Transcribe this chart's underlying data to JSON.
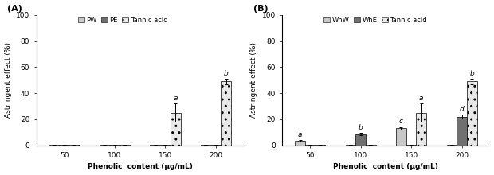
{
  "panel_A": {
    "title": "(A)",
    "categories": [
      50,
      100,
      150,
      200
    ],
    "series": [
      {
        "label": "PW",
        "color": "#c8c8c8",
        "hatch": "",
        "values": [
          0.3,
          0.3,
          0.3,
          0.3
        ],
        "errors": [
          0.1,
          0.1,
          0.1,
          0.1
        ],
        "letters": [
          "",
          "",
          "",
          ""
        ]
      },
      {
        "label": "PE",
        "color": "#707070",
        "hatch": "",
        "values": [
          0.3,
          0.3,
          0.3,
          0.3
        ],
        "errors": [
          0.1,
          0.1,
          0.1,
          0.1
        ],
        "letters": [
          "",
          "",
          "",
          ""
        ]
      },
      {
        "label": "Tannic acid",
        "color": "#e8e8e8",
        "hatch": "..",
        "values": [
          0.3,
          0.3,
          25.0,
          49.0
        ],
        "errors": [
          0.1,
          0.1,
          7.0,
          2.0
        ],
        "letters": [
          "",
          "",
          "a",
          "b"
        ]
      }
    ],
    "ylabel": "Astringent effect (%)",
    "xlabel": "Phenolic  content (μg/mL)",
    "ylim": [
      0,
      100
    ],
    "yticks": [
      0,
      20,
      40,
      60,
      80,
      100
    ]
  },
  "panel_B": {
    "title": "(B)",
    "categories": [
      50,
      100,
      150,
      200
    ],
    "series": [
      {
        "label": "WhW",
        "color": "#c8c8c8",
        "hatch": "",
        "values": [
          3.5,
          0.3,
          13.0,
          0.3
        ],
        "errors": [
          0.5,
          0.1,
          1.0,
          0.1
        ],
        "letters": [
          "a",
          "",
          "c",
          ""
        ]
      },
      {
        "label": "WhE",
        "color": "#707070",
        "hatch": "",
        "values": [
          0.3,
          8.5,
          0.3,
          22.0
        ],
        "errors": [
          0.1,
          1.0,
          0.1,
          1.5
        ],
        "letters": [
          "",
          "b",
          "",
          "d"
        ]
      },
      {
        "label": "Tannic acid",
        "color": "#e8e8e8",
        "hatch": "..",
        "values": [
          0.3,
          0.3,
          25.0,
          49.0
        ],
        "errors": [
          0.1,
          0.1,
          7.0,
          2.0
        ],
        "letters": [
          "",
          "",
          "a",
          "b"
        ]
      }
    ],
    "ylabel": "Astringent effect (%)",
    "xlabel": "Phenolic  content (μg/mL)",
    "ylim": [
      0,
      100
    ],
    "yticks": [
      0,
      20,
      40,
      60,
      80,
      100
    ]
  },
  "bar_width": 0.2,
  "figure_bg": "#ffffff",
  "font_size": 6.5,
  "title_font_size": 8,
  "legend_font_size": 6.0
}
